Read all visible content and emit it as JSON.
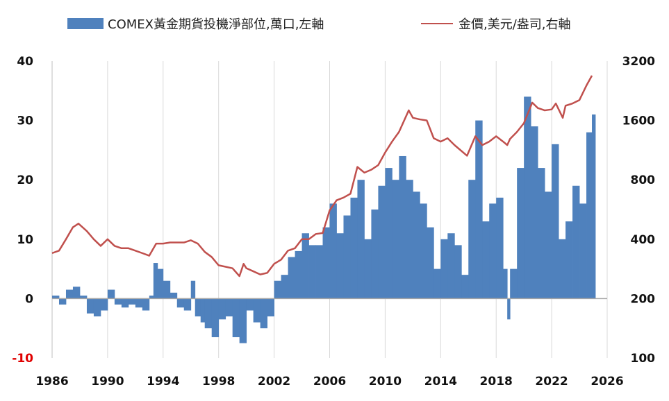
{
  "chart_data": {
    "type": "bar+line",
    "legend": {
      "placement": "top",
      "entries": [
        {
          "label": "COMEX黃金期貨投機淨部位,萬口,左軸",
          "color": "#4f81bd",
          "kind": "bar"
        },
        {
          "label": "金價,美元/盎司,右軸",
          "color": "#c0504d",
          "kind": "line"
        }
      ]
    },
    "x_axis": {
      "range": [
        1986,
        2026
      ],
      "ticks": [
        "1986",
        "1990",
        "1994",
        "1998",
        "2002",
        "2006",
        "2010",
        "2014",
        "2018",
        "2022",
        "2026"
      ]
    },
    "y_left": {
      "range": [
        -10,
        40
      ],
      "ticks": [
        "40",
        "30",
        "20",
        "10",
        "0",
        "-10"
      ],
      "negative_tick_color": "#e00000"
    },
    "y_right": {
      "scale": "log",
      "range": [
        100,
        3200
      ],
      "ticks": [
        "3200",
        "1600",
        "800",
        "400",
        "200",
        "100"
      ]
    },
    "grid": "vertical",
    "series": [
      {
        "name": "COMEX黃金期貨投機淨部位,萬口,左軸",
        "type": "bar",
        "axis": "left",
        "color": "#4f81bd",
        "points": [
          [
            1986.0,
            0.5
          ],
          [
            1986.5,
            -1
          ],
          [
            1987.0,
            1.5
          ],
          [
            1987.5,
            2
          ],
          [
            1988.0,
            0.5
          ],
          [
            1988.5,
            -2.5
          ],
          [
            1989.0,
            -3
          ],
          [
            1989.5,
            -2
          ],
          [
            1990.0,
            1.5
          ],
          [
            1990.5,
            -1
          ],
          [
            1991.0,
            -1.5
          ],
          [
            1991.5,
            -1
          ],
          [
            1992.0,
            -1.5
          ],
          [
            1992.5,
            -2
          ],
          [
            1993.0,
            0.5
          ],
          [
            1993.3,
            6
          ],
          [
            1993.6,
            5
          ],
          [
            1994.0,
            3
          ],
          [
            1994.5,
            1
          ],
          [
            1995.0,
            -1.5
          ],
          [
            1995.5,
            -2
          ],
          [
            1996.0,
            3
          ],
          [
            1996.3,
            -3
          ],
          [
            1996.7,
            -4
          ],
          [
            1997.0,
            -5
          ],
          [
            1997.5,
            -6.5
          ],
          [
            1998.0,
            -3.5
          ],
          [
            1998.5,
            -3
          ],
          [
            1999.0,
            -6.5
          ],
          [
            1999.5,
            -7.5
          ],
          [
            2000.0,
            -2
          ],
          [
            2000.5,
            -4
          ],
          [
            2001.0,
            -5
          ],
          [
            2001.5,
            -3
          ],
          [
            2002.0,
            3
          ],
          [
            2002.5,
            4
          ],
          [
            2003.0,
            7
          ],
          [
            2003.5,
            8
          ],
          [
            2004.0,
            11
          ],
          [
            2004.5,
            9
          ],
          [
            2005.0,
            9
          ],
          [
            2005.5,
            12
          ],
          [
            2006.0,
            16
          ],
          [
            2006.5,
            11
          ],
          [
            2007.0,
            14
          ],
          [
            2007.5,
            17
          ],
          [
            2008.0,
            20
          ],
          [
            2008.5,
            10
          ],
          [
            2009.0,
            15
          ],
          [
            2009.5,
            19
          ],
          [
            2010.0,
            22
          ],
          [
            2010.5,
            20
          ],
          [
            2011.0,
            24
          ],
          [
            2011.5,
            20
          ],
          [
            2012.0,
            18
          ],
          [
            2012.5,
            16
          ],
          [
            2013.0,
            12
          ],
          [
            2013.5,
            5
          ],
          [
            2014.0,
            10
          ],
          [
            2014.5,
            11
          ],
          [
            2015.0,
            9
          ],
          [
            2015.5,
            4
          ],
          [
            2016.0,
            20
          ],
          [
            2016.5,
            30
          ],
          [
            2017.0,
            13
          ],
          [
            2017.5,
            16
          ],
          [
            2018.0,
            17
          ],
          [
            2018.5,
            5
          ],
          [
            2018.8,
            -3.5
          ],
          [
            2019.0,
            5
          ],
          [
            2019.5,
            22
          ],
          [
            2020.0,
            34
          ],
          [
            2020.5,
            29
          ],
          [
            2021.0,
            22
          ],
          [
            2021.5,
            18
          ],
          [
            2022.0,
            26
          ],
          [
            2022.5,
            10
          ],
          [
            2023.0,
            13
          ],
          [
            2023.5,
            19
          ],
          [
            2024.0,
            16
          ],
          [
            2024.5,
            28
          ],
          [
            2024.9,
            31
          ]
        ]
      },
      {
        "name": "金價,美元/盎司,右軸",
        "type": "line",
        "axis": "right",
        "color": "#c0504d",
        "points": [
          [
            1986.0,
            340
          ],
          [
            1986.5,
            350
          ],
          [
            1987.0,
            400
          ],
          [
            1987.5,
            460
          ],
          [
            1987.9,
            480
          ],
          [
            1988.5,
            440
          ],
          [
            1989.0,
            400
          ],
          [
            1989.5,
            370
          ],
          [
            1990.0,
            400
          ],
          [
            1990.5,
            370
          ],
          [
            1991.0,
            360
          ],
          [
            1991.5,
            360
          ],
          [
            1992.0,
            350
          ],
          [
            1992.5,
            340
          ],
          [
            1993.0,
            330
          ],
          [
            1993.5,
            380
          ],
          [
            1994.0,
            380
          ],
          [
            1994.5,
            385
          ],
          [
            1995.0,
            385
          ],
          [
            1995.5,
            385
          ],
          [
            1996.0,
            395
          ],
          [
            1996.5,
            380
          ],
          [
            1997.0,
            345
          ],
          [
            1997.5,
            325
          ],
          [
            1998.0,
            295
          ],
          [
            1998.5,
            290
          ],
          [
            1999.0,
            285
          ],
          [
            1999.5,
            260
          ],
          [
            1999.8,
            300
          ],
          [
            2000.0,
            285
          ],
          [
            2000.5,
            275
          ],
          [
            2001.0,
            265
          ],
          [
            2001.5,
            270
          ],
          [
            2002.0,
            300
          ],
          [
            2002.5,
            315
          ],
          [
            2003.0,
            350
          ],
          [
            2003.5,
            360
          ],
          [
            2004.0,
            400
          ],
          [
            2004.5,
            400
          ],
          [
            2005.0,
            425
          ],
          [
            2005.5,
            430
          ],
          [
            2006.0,
            560
          ],
          [
            2006.5,
            630
          ],
          [
            2007.0,
            650
          ],
          [
            2007.5,
            680
          ],
          [
            2008.0,
            930
          ],
          [
            2008.5,
            870
          ],
          [
            2009.0,
            900
          ],
          [
            2009.5,
            950
          ],
          [
            2010.0,
            1100
          ],
          [
            2010.5,
            1250
          ],
          [
            2011.0,
            1400
          ],
          [
            2011.7,
            1800
          ],
          [
            2012.0,
            1650
          ],
          [
            2012.5,
            1620
          ],
          [
            2013.0,
            1600
          ],
          [
            2013.5,
            1300
          ],
          [
            2014.0,
            1250
          ],
          [
            2014.5,
            1300
          ],
          [
            2015.0,
            1200
          ],
          [
            2015.9,
            1060
          ],
          [
            2016.5,
            1330
          ],
          [
            2017.0,
            1200
          ],
          [
            2017.5,
            1250
          ],
          [
            2018.0,
            1330
          ],
          [
            2018.5,
            1250
          ],
          [
            2018.8,
            1200
          ],
          [
            2019.0,
            1290
          ],
          [
            2019.5,
            1400
          ],
          [
            2020.0,
            1550
          ],
          [
            2020.6,
            1970
          ],
          [
            2021.0,
            1850
          ],
          [
            2021.5,
            1800
          ],
          [
            2022.0,
            1820
          ],
          [
            2022.3,
            1950
          ],
          [
            2022.8,
            1650
          ],
          [
            2023.0,
            1900
          ],
          [
            2023.5,
            1950
          ],
          [
            2024.0,
            2030
          ],
          [
            2024.5,
            2400
          ],
          [
            2024.9,
            2700
          ]
        ]
      }
    ]
  }
}
